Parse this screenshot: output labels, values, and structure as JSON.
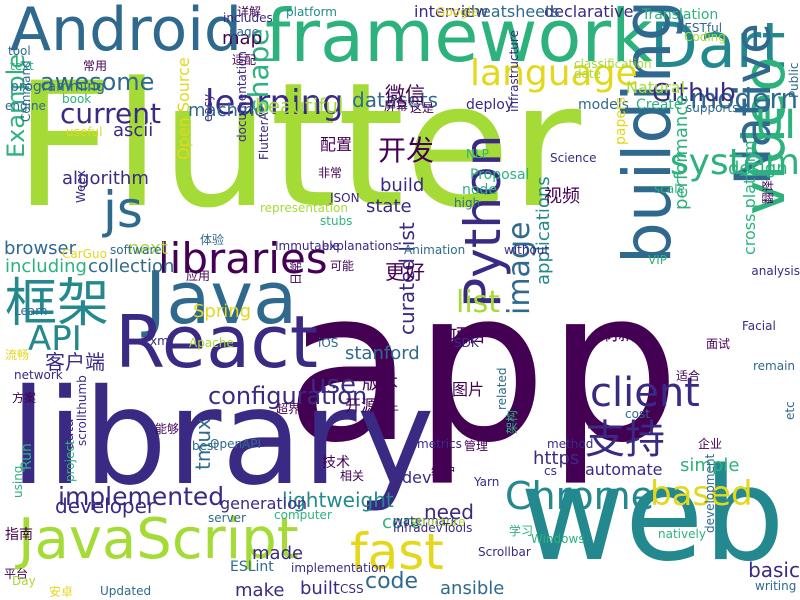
{
  "colors": {
    "dark_purple": "#440154",
    "indigo": "#3b2a84",
    "blue": "#2f6a8e",
    "teal": "#23898e",
    "green": "#2db27d",
    "lime": "#a5db36",
    "yellow": "#e3d81c",
    "light_green": "#5ec962"
  },
  "words": [
    {
      "text": "Flutter",
      "color": "#a5db36"
    },
    {
      "text": "app",
      "color": "#440154"
    },
    {
      "text": "library",
      "color": "#3b2a84"
    },
    {
      "text": "web",
      "color": "#23898e"
    },
    {
      "text": "framework",
      "color": "#2db27d"
    },
    {
      "text": "Android",
      "color": "#2f6a8e"
    },
    {
      "text": "Dart",
      "color": "#23898e"
    },
    {
      "text": "Java",
      "color": "#2f6a8e"
    },
    {
      "text": "React",
      "color": "#3b2a84"
    },
    {
      "text": "JavaScript",
      "color": "#a5db36"
    },
    {
      "text": "building",
      "color": "#2f6a8e"
    },
    {
      "text": "video",
      "color": "#2db27d"
    },
    {
      "text": "Native",
      "color": "#2f6a8e"
    },
    {
      "text": "Python",
      "color": "#3b2a84"
    },
    {
      "text": "框架",
      "color": "#23898e"
    },
    {
      "text": "libraries",
      "color": "#440154"
    },
    {
      "text": "language",
      "color": "#e3d81c"
    },
    {
      "text": "learning",
      "color": "#3b2a84"
    },
    {
      "text": "fast",
      "color": "#e3d81c"
    },
    {
      "text": "Chrome",
      "color": "#23898e"
    },
    {
      "text": "js",
      "color": "#2f6a8e"
    },
    {
      "text": "UI",
      "color": "#2db27d"
    },
    {
      "text": "API",
      "color": "#23898e"
    },
    {
      "text": "client",
      "color": "#3b2a84"
    },
    {
      "text": "system",
      "color": "#2db27d"
    },
    {
      "text": "image",
      "color": "#2f6a8e"
    },
    {
      "text": "based",
      "color": "#e3d81c"
    },
    {
      "text": "modern",
      "color": "#2f6a8e"
    },
    {
      "text": "Github",
      "color": "#3b2a84"
    },
    {
      "text": "支持",
      "color": "#3b2a84"
    },
    {
      "text": "use",
      "color": "#3b2a84"
    },
    {
      "text": "current",
      "color": "#3b2a84"
    },
    {
      "text": "awesome",
      "color": "#2f6a8e"
    },
    {
      "text": "shape",
      "color": "#2db27d"
    },
    {
      "text": "Example",
      "color": "#2db27d"
    },
    {
      "text": "implemented",
      "color": "#3b2a84"
    },
    {
      "text": "configuration",
      "color": "#3b2a84"
    },
    {
      "text": "list",
      "color": "#a5db36"
    },
    {
      "text": "curated list",
      "color": "#3b2a84"
    },
    {
      "text": "code",
      "color": "#2f6a8e"
    },
    {
      "text": "开发",
      "color": "#440154"
    },
    {
      "text": "algorithm",
      "color": "#3b2a84"
    },
    {
      "text": "ascii",
      "color": "#3b2a84"
    },
    {
      "text": "browser",
      "color": "#2f6a8e"
    },
    {
      "text": "developer",
      "color": "#3b2a84"
    },
    {
      "text": "design",
      "color": "#2db27d"
    },
    {
      "text": "lightweight",
      "color": "#23898e"
    },
    {
      "text": "https",
      "color": "#3b2a84"
    },
    {
      "text": "applications",
      "color": "#23898e"
    },
    {
      "text": "performance",
      "color": "#2db27d"
    },
    {
      "text": "cross platform",
      "color": "#2db27d"
    },
    {
      "text": "Open Source",
      "color": "#e3d81c"
    },
    {
      "text": "客户端",
      "color": "#3b2a84"
    },
    {
      "text": "machine",
      "color": "#2f6a8e"
    },
    {
      "text": "datasets",
      "color": "#2f6a8e"
    },
    {
      "text": "beautiful",
      "color": "#a5db36"
    },
    {
      "text": "build",
      "color": "#3b2a84"
    },
    {
      "text": "state",
      "color": "#3b2a84"
    },
    {
      "text": "simple",
      "color": "#2db27d"
    },
    {
      "text": "need",
      "color": "#3b2a84"
    },
    {
      "text": "dev",
      "color": "#3b2a84"
    },
    {
      "text": "core",
      "color": "#2db27d"
    },
    {
      "text": "made",
      "color": "#3b2a84"
    },
    {
      "text": "make",
      "color": "#3b2a84"
    },
    {
      "text": "built",
      "color": "#3b2a84"
    },
    {
      "text": "ansible",
      "color": "#2f6a8e"
    },
    {
      "text": "basic",
      "color": "#3b2a84"
    },
    {
      "text": "map",
      "color": "#440154"
    },
    {
      "text": "tmux",
      "color": "#2f6a8e"
    },
    {
      "text": "视频",
      "color": "#440154"
    },
    {
      "text": "including",
      "color": "#2db27d"
    },
    {
      "text": "collection",
      "color": "#2f6a8e"
    },
    {
      "text": "Spring",
      "color": "#e3d81c"
    },
    {
      "text": "stanford",
      "color": "#2f6a8e"
    },
    {
      "text": "刷新",
      "color": "#440154"
    },
    {
      "text": "更好",
      "color": "#440154"
    },
    {
      "text": "微信",
      "color": "#440154"
    },
    {
      "text": "配置",
      "color": "#440154"
    },
    {
      "text": "项目",
      "color": "#440154"
    },
    {
      "text": "next",
      "color": "#a5db36"
    },
    {
      "text": "declarative",
      "color": "#3b2a84"
    },
    {
      "text": "interview",
      "color": "#3b2a84"
    },
    {
      "text": "cheatsheets",
      "color": "#2f6a8e"
    },
    {
      "text": "Translation",
      "color": "#2db27d"
    },
    {
      "text": "Natural",
      "color": "#a5db36"
    },
    {
      "text": "Create",
      "color": "#2db27d"
    },
    {
      "text": "models",
      "color": "#2f6a8e"
    },
    {
      "text": "deploy",
      "color": "#3b2a84"
    },
    {
      "text": "generation",
      "color": "#3b2a84"
    },
    {
      "text": "版本",
      "color": "#440154"
    },
    {
      "text": "技术",
      "color": "#440154"
    },
    {
      "text": "图片",
      "color": "#440154"
    },
    {
      "text": "开源",
      "color": "#440154"
    },
    {
      "text": "automate",
      "color": "#3b2a84"
    },
    {
      "text": "papers",
      "color": "#e3d81c"
    },
    {
      "text": "Proposal",
      "color": "#2db27d"
    },
    {
      "text": "node",
      "color": "#2db27d"
    },
    {
      "text": "Run",
      "color": "#2db27d"
    },
    {
      "text": "data",
      "color": "#3b2a84"
    },
    {
      "text": "programming",
      "color": "#2f6a8e"
    },
    {
      "text": "engine",
      "color": "#2f6a8e"
    },
    {
      "text": "text",
      "color": "#2db27d"
    },
    {
      "text": "tool",
      "color": "#2f6a8e"
    },
    {
      "text": "page",
      "color": "#2f6a8e"
    },
    {
      "text": "非常",
      "color": "#440154"
    },
    {
      "text": "不同",
      "color": "#440154"
    },
    {
      "text": "指南",
      "color": "#440154"
    },
    {
      "text": "平台",
      "color": "#440154"
    },
    {
      "text": "安卓",
      "color": "#e3d81c"
    },
    {
      "text": "Updated",
      "color": "#2f6a8e"
    },
    {
      "text": "ESLint",
      "color": "#2f6a8e"
    },
    {
      "text": "implementation",
      "color": "#3b2a84"
    },
    {
      "text": "server",
      "color": "#2f6a8e"
    },
    {
      "text": "computer",
      "color": "#2db27d"
    },
    {
      "text": "watermark",
      "color": "#3b2a84"
    },
    {
      "text": "structure",
      "color": "#a5db36"
    },
    {
      "text": "metrics",
      "color": "#3b2a84"
    },
    {
      "text": "method",
      "color": "#3b2a84"
    },
    {
      "text": "cs",
      "color": "#3b2a84"
    },
    {
      "text": "iOS",
      "color": "#2f6a8e"
    },
    {
      "text": "SDK",
      "color": "#3b2a84"
    },
    {
      "text": "Facial",
      "color": "#3b2a84"
    },
    {
      "text": "without",
      "color": "#3b2a84"
    },
    {
      "text": "Animation",
      "color": "#2f6a8e"
    },
    {
      "text": "explanations",
      "color": "#3b2a84"
    },
    {
      "text": "Immutable",
      "color": "#3b2a84"
    },
    {
      "text": "software",
      "color": "#2f6a8e"
    },
    {
      "text": "CarGuo",
      "color": "#e3d81c"
    },
    {
      "text": "Weex",
      "color": "#3b2a84"
    },
    {
      "text": "Science",
      "color": "#3b2a84"
    },
    {
      "text": "NLP",
      "color": "#2db27d"
    },
    {
      "text": "JSON",
      "color": "#3b2a84"
    },
    {
      "text": "stubs",
      "color": "#2db27d"
    },
    {
      "text": "high",
      "color": "#2f6a8e"
    },
    {
      "text": "scale",
      "color": "#2db27d"
    },
    {
      "text": "easy",
      "color": "#3b2a84"
    },
    {
      "text": "FlutterA",
      "color": "#3b2a84"
    },
    {
      "text": "documentation",
      "color": "#3b2a84"
    },
    {
      "text": "representation",
      "color": "#a5db36"
    },
    {
      "text": "Apache",
      "color": "#a5db36"
    },
    {
      "text": "xml",
      "color": "#3b2a84"
    },
    {
      "text": "network",
      "color": "#3b2a84"
    },
    {
      "text": "Learn",
      "color": "#2f6a8e"
    },
    {
      "text": "book",
      "color": "#2db27d"
    },
    {
      "text": "useful",
      "color": "#e3d81c"
    },
    {
      "text": "Command",
      "color": "#2f6a8e"
    },
    {
      "text": "supports",
      "color": "#2f6a8e"
    },
    {
      "text": "RESTful",
      "color": "#2f6a8e"
    },
    {
      "text": "Coding",
      "color": "#a5db36"
    },
    {
      "text": "Public",
      "color": "#2f6a8e"
    },
    {
      "text": "详解",
      "color": "#440154"
    },
    {
      "text": "platform",
      "color": "#23898e"
    },
    {
      "text": "Google",
      "color": "#e3d81c"
    },
    {
      "text": "includes",
      "color": "#3b2a84"
    },
    {
      "text": "适配",
      "color": "#440154"
    },
    {
      "text": "这是",
      "color": "#440154"
    },
    {
      "text": "屏幕",
      "color": "#440154"
    },
    {
      "text": "常用",
      "color": "#440154"
    },
    {
      "text": "date",
      "color": "#a5db36"
    },
    {
      "text": "classification",
      "color": "#a5db36"
    },
    {
      "text": "infrastructure",
      "color": "#3b2a84"
    },
    {
      "text": "InfradevTools",
      "color": "#3b2a84"
    },
    {
      "text": "VIP",
      "color": "#2db27d"
    },
    {
      "text": "analysis",
      "color": "#3b2a84"
    },
    {
      "text": "remain",
      "color": "#2f6a8e"
    },
    {
      "text": "etc",
      "color": "#2f6a8e"
    },
    {
      "text": "writing",
      "color": "#2f6a8e"
    },
    {
      "text": "development",
      "color": "#2f6a8e"
    },
    {
      "text": "natively",
      "color": "#2db27d"
    },
    {
      "text": "Yarn",
      "color": "#3b2a84"
    },
    {
      "text": "企业",
      "color": "#440154"
    },
    {
      "text": "cost",
      "color": "#2f6a8e"
    },
    {
      "text": "related",
      "color": "#2f6a8e"
    },
    {
      "text": "Scrollbar",
      "color": "#3b2a84"
    },
    {
      "text": "Windows",
      "color": "#2db27d"
    },
    {
      "text": "using",
      "color": "#2db27d"
    },
    {
      "text": "project",
      "color": "#2db27d"
    },
    {
      "text": "best",
      "color": "#2f6a8e"
    },
    {
      "text": "OpenAPI",
      "color": "#2f6a8e"
    },
    {
      "text": "Day",
      "color": "#a5db36"
    },
    {
      "text": "CSS",
      "color": "#3b2a84"
    },
    {
      "text": "学习",
      "color": "#2db27d"
    },
    {
      "text": "管理",
      "color": "#440154"
    },
    {
      "text": "维护",
      "color": "#440154"
    },
    {
      "text": "相关",
      "color": "#440154"
    },
    {
      "text": "基于",
      "color": "#440154"
    },
    {
      "text": "超界",
      "color": "#440154"
    },
    {
      "text": "面试",
      "color": "#440154"
    },
    {
      "text": "适合",
      "color": "#440154"
    },
    {
      "text": "方案",
      "color": "#440154"
    },
    {
      "text": "流畅",
      "color": "#e3d81c"
    },
    {
      "text": "体验",
      "color": "#2f6a8e"
    },
    {
      "text": "可能",
      "color": "#440154"
    },
    {
      "text": "日常",
      "color": "#440154"
    },
    {
      "text": "应用",
      "color": "#440154"
    },
    {
      "text": "翻译",
      "color": "#440154"
    },
    {
      "text": "scrollthumb",
      "color": "#3b2a84"
    },
    {
      "text": "能够",
      "color": "#440154"
    },
    {
      "text": "架构",
      "color": "#2db27d"
    },
    {
      "text": "案例",
      "color": "#440154"
    },
    {
      "text": "同时",
      "color": "#440154"
    }
  ]
}
